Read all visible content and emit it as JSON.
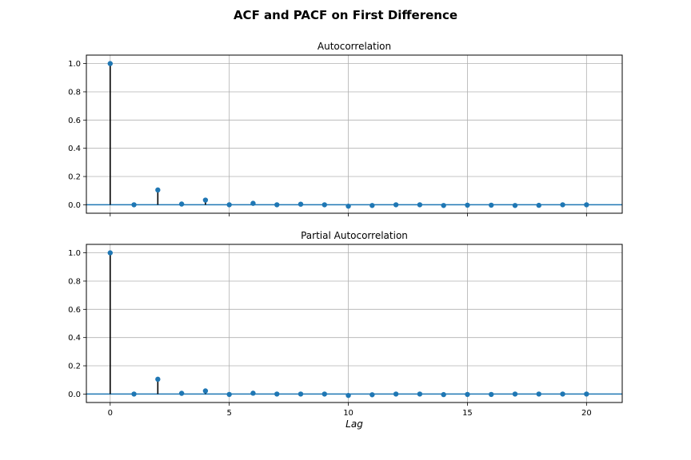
{
  "figure_title": "ACF and PACF on First Difference",
  "colors": {
    "marker": "#1f77b4",
    "stem": "#000000",
    "grid": "#b0b0b0",
    "zero_line": "#1f77b4"
  },
  "chart_data": [
    {
      "type": "stem",
      "title": "Autocorrelation",
      "xlabel": "",
      "ylabel": "",
      "xlim": [
        -1,
        21.5
      ],
      "ylim": [
        -0.06,
        1.06
      ],
      "grid": true,
      "x_ticks": [
        0,
        5,
        10,
        15,
        20
      ],
      "x_tick_labels_visible": false,
      "y_ticks": [
        0.0,
        0.2,
        0.4,
        0.6,
        0.8,
        1.0
      ],
      "y_tick_labels": [
        "0.0",
        "0.2",
        "0.4",
        "0.6",
        "0.8",
        "1.0"
      ],
      "x": [
        0,
        1,
        2,
        3,
        4,
        5,
        6,
        7,
        8,
        9,
        10,
        11,
        12,
        13,
        14,
        15,
        16,
        17,
        18,
        19,
        20
      ],
      "values": [
        1.0,
        0.0,
        0.105,
        0.005,
        0.033,
        0.0,
        0.01,
        0.0,
        0.004,
        0.0,
        -0.01,
        -0.005,
        0.0,
        0.0,
        -0.005,
        -0.003,
        -0.003,
        -0.005,
        -0.004,
        0.0,
        0.0
      ]
    },
    {
      "type": "stem",
      "title": "Partial Autocorrelation",
      "xlabel": "Lag",
      "ylabel": "",
      "xlim": [
        -1,
        21.5
      ],
      "ylim": [
        -0.06,
        1.06
      ],
      "grid": true,
      "x_ticks": [
        0,
        5,
        10,
        15,
        20
      ],
      "x_tick_labels": [
        "0",
        "5",
        "10",
        "15",
        "20"
      ],
      "x_tick_labels_visible": true,
      "y_ticks": [
        0.0,
        0.2,
        0.4,
        0.6,
        0.8,
        1.0
      ],
      "y_tick_labels": [
        "0.0",
        "0.2",
        "0.4",
        "0.6",
        "0.8",
        "1.0"
      ],
      "x": [
        0,
        1,
        2,
        3,
        4,
        5,
        6,
        7,
        8,
        9,
        10,
        11,
        12,
        13,
        14,
        15,
        16,
        17,
        18,
        19,
        20
      ],
      "values": [
        1.0,
        0.0,
        0.105,
        0.005,
        0.022,
        -0.003,
        0.006,
        0.0,
        0.0,
        0.0,
        -0.01,
        -0.005,
        0.0,
        0.0,
        -0.004,
        -0.003,
        -0.003,
        0.0,
        0.0,
        0.0,
        0.0
      ]
    }
  ]
}
